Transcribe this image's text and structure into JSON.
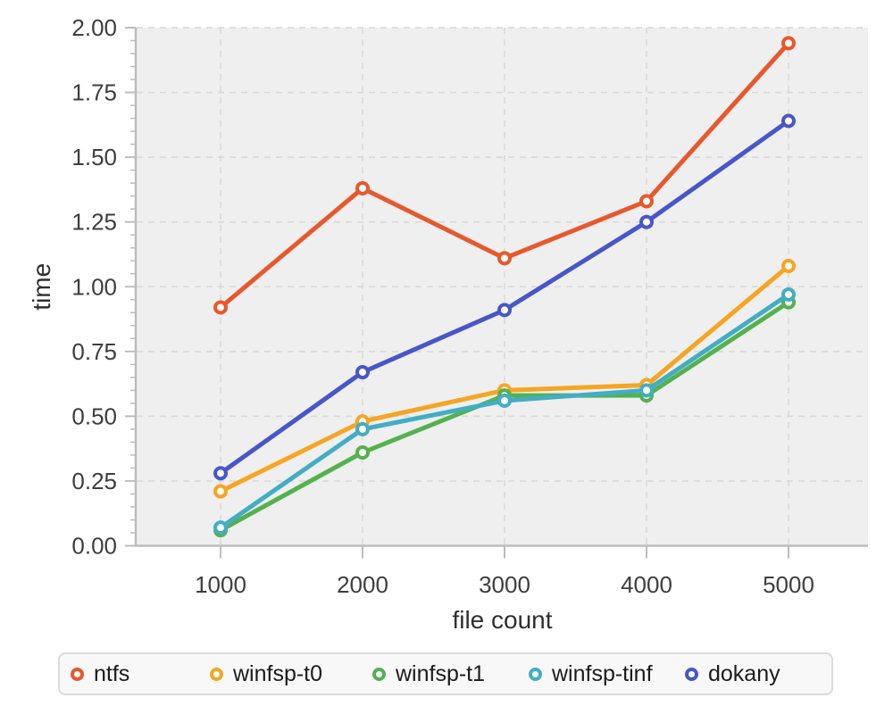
{
  "chart_data": {
    "type": "line",
    "xlabel": "file count",
    "ylabel": "time",
    "categories": [
      "1000",
      "2000",
      "3000",
      "4000",
      "5000"
    ],
    "x_numeric": [
      1000,
      2000,
      3000,
      4000,
      5000
    ],
    "series": [
      {
        "name": "ntfs",
        "color": "#E7582D",
        "values": [
          0.92,
          1.38,
          1.11,
          1.33,
          1.94
        ]
      },
      {
        "name": "winfsp-t0",
        "color": "#F6A522",
        "values": [
          0.21,
          0.48,
          0.6,
          0.62,
          1.08
        ]
      },
      {
        "name": "winfsp-t1",
        "color": "#54B14E",
        "values": [
          0.06,
          0.36,
          0.58,
          0.58,
          0.94
        ]
      },
      {
        "name": "winfsp-tinf",
        "color": "#42ADC4",
        "values": [
          0.07,
          0.45,
          0.56,
          0.6,
          0.97
        ]
      },
      {
        "name": "dokany",
        "color": "#4757C8",
        "values": [
          0.28,
          0.67,
          0.91,
          1.25,
          1.64
        ]
      }
    ],
    "ylim": [
      0,
      2
    ],
    "ytick_labels": [
      "0.00",
      "0.25",
      "0.50",
      "0.75",
      "1.00",
      "1.25",
      "1.50",
      "1.75",
      "2.00"
    ],
    "ytick_minor_step": 0.05,
    "grid": "dashed",
    "legend_position": "bottom",
    "marker": "open-circle",
    "colors": {
      "page_bg": "#FFFFFF",
      "plot_bg": "#EFEFEF",
      "grid": "#D8D8D8",
      "axis": "#BDBDBD",
      "tick_label": "#3E3E40",
      "axis_label": "#2F2F31",
      "legend_bg": "#F8F8F9",
      "legend_border": "#DBDBDD",
      "legend_text": "#1B1B1D",
      "marker_fill": "#FFFFFF"
    }
  }
}
